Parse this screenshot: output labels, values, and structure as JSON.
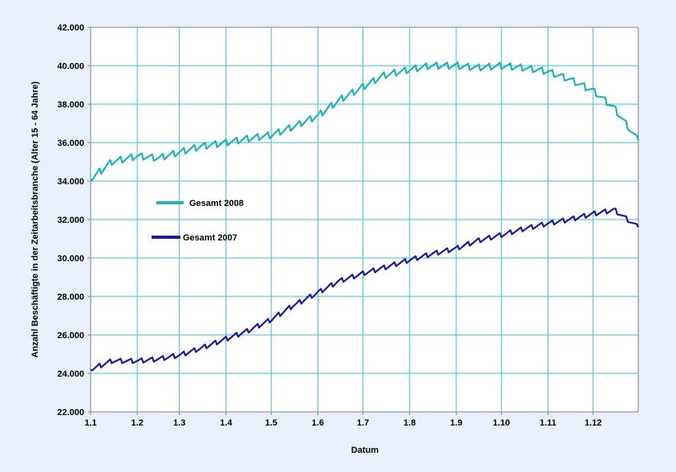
{
  "chart_data": {
    "type": "line",
    "xlabel": "Datum",
    "ylabel": "Anzahl Beschäftigte in der Zeitarbeitsbranche (Alter 15 - 64 Jahre)",
    "ylim": [
      22000,
      42000
    ],
    "xlim": [
      "1.1",
      "31.12"
    ],
    "x_tick_labels": [
      "1.1",
      "1.2",
      "1.3",
      "1.4",
      "1.5",
      "1.6",
      "1.7",
      "1.8",
      "1.9",
      "1.10",
      "1.11",
      "1.12"
    ],
    "y_tick_labels": [
      "22.000",
      "24.000",
      "26.000",
      "28.000",
      "30.000",
      "32.000",
      "34.000",
      "36.000",
      "38.000",
      "40.000",
      "42.000"
    ],
    "grid": true,
    "legend_position": "center-left",
    "x_sampling": "semi-monthly (1st and 15th of each month)",
    "series": [
      {
        "name": "Gesamt 2008",
        "color": "#20b2b8",
        "x": [
          "1.1",
          "15.1",
          "1.2",
          "15.2",
          "1.3",
          "15.3",
          "1.4",
          "15.4",
          "1.5",
          "15.5",
          "1.6",
          "15.6",
          "1.7",
          "15.7",
          "1.8",
          "15.8",
          "1.9",
          "15.9",
          "1.10",
          "15.10",
          "1.11",
          "15.11",
          "1.12",
          "15.12",
          "31.12"
        ],
        "values": [
          34100,
          35000,
          35300,
          35200,
          35500,
          35800,
          36000,
          36200,
          36400,
          36800,
          37400,
          38200,
          38900,
          39500,
          39800,
          40000,
          40000,
          39900,
          40000,
          39900,
          39700,
          39300,
          38700,
          37800,
          36100
        ]
      },
      {
        "name": "Gesamt 2007",
        "color": "#1a1a9a",
        "x": [
          "1.1",
          "15.1",
          "1.2",
          "15.2",
          "1.3",
          "15.3",
          "1.4",
          "15.4",
          "1.5",
          "15.5",
          "1.6",
          "15.6",
          "1.7",
          "15.7",
          "1.8",
          "15.8",
          "1.9",
          "15.9",
          "1.10",
          "15.10",
          "1.11",
          "15.11",
          "1.12",
          "15.12",
          "31.12"
        ],
        "values": [
          24200,
          24650,
          24650,
          24750,
          24950,
          25300,
          25800,
          26200,
          26800,
          27500,
          28200,
          28800,
          29200,
          29500,
          29900,
          30200,
          30500,
          30900,
          31200,
          31500,
          31800,
          32000,
          32300,
          32500,
          31600
        ]
      }
    ]
  }
}
